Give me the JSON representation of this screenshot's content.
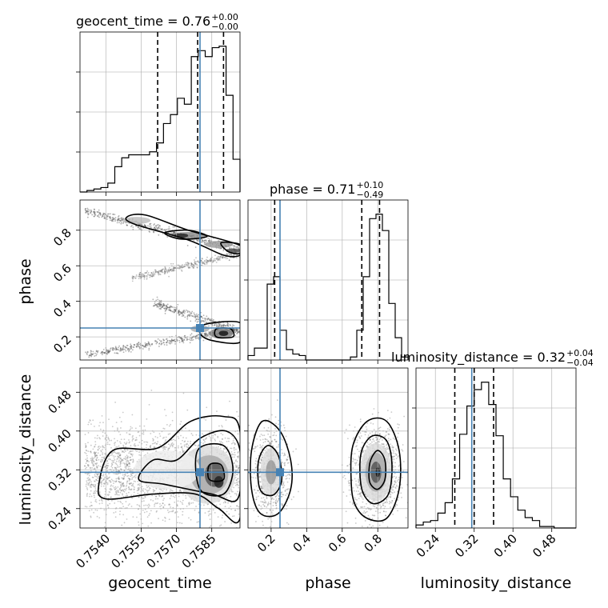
{
  "chart_data": {
    "type": "corner",
    "parameters": [
      "geocent_time",
      "phase",
      "luminosity_distance"
    ],
    "titles": {
      "geocent_time": {
        "label": "geocent_time",
        "median": "0.76",
        "plus": "+0.00",
        "minus": "−0.00"
      },
      "phase": {
        "label": "phase",
        "median": "0.71",
        "plus": "+0.10",
        "minus": "−0.49"
      },
      "luminosity_distance": {
        "label": "luminosity_distance",
        "median": "0.32",
        "plus": "+0.04",
        "minus": "−0.04"
      }
    },
    "ranges": {
      "geocent_time": [
        0.7529,
        0.7597
      ],
      "phase": [
        0.07,
        0.97
      ],
      "luminosity_distance": [
        0.2,
        0.53
      ]
    },
    "ticks": {
      "geocent_time": [
        "0.7540",
        "0.7555",
        "0.7570",
        "0.7585"
      ],
      "phase": [
        "0.2",
        "0.4",
        "0.6",
        "0.8"
      ],
      "luminosity_distance": [
        "0.24",
        "0.32",
        "0.40",
        "0.48"
      ]
    },
    "truths": {
      "geocent_time": 0.758,
      "phase": 0.25,
      "luminosity_distance": 0.315
    },
    "quantiles": {
      "geocent_time": [
        0.7562,
        0.7579,
        0.759
      ],
      "phase": [
        0.22,
        0.71,
        0.81
      ],
      "luminosity_distance": [
        0.28,
        0.32,
        0.36
      ]
    },
    "histograms": {
      "geocent_time": {
        "bins": [
          0.7529,
          0.7597
        ],
        "counts": [
          0,
          0.01,
          0.02,
          0.03,
          0.06,
          0.17,
          0.23,
          0.25,
          0.25,
          0.25,
          0.27,
          0.33,
          0.46,
          0.52,
          0.63,
          0.59,
          0.91,
          0.95,
          0.91,
          0.97,
          0.98,
          0.65,
          0.22
        ]
      },
      "phase": {
        "bins": [
          0.07,
          0.97
        ],
        "counts": [
          0.03,
          0.08,
          0.08,
          0.51,
          0.56,
          0.2,
          0.07,
          0.04,
          0.03,
          0,
          0,
          0,
          0,
          0,
          0,
          0,
          0.02,
          0.2,
          0.56,
          0.95,
          0.98,
          0.87,
          0.38,
          0.15,
          0.02
        ]
      },
      "luminosity_distance": {
        "bins": [
          0.2,
          0.53
        ],
        "counts": [
          0.02,
          0.04,
          0.05,
          0.1,
          0.17,
          0.33,
          0.63,
          0.82,
          0.93,
          0.98,
          0.83,
          0.62,
          0.33,
          0.21,
          0.12,
          0.07,
          0.05,
          0.01,
          0.01,
          0,
          0,
          0
        ]
      }
    },
    "truth_color": "#4682b4",
    "grid": true
  }
}
